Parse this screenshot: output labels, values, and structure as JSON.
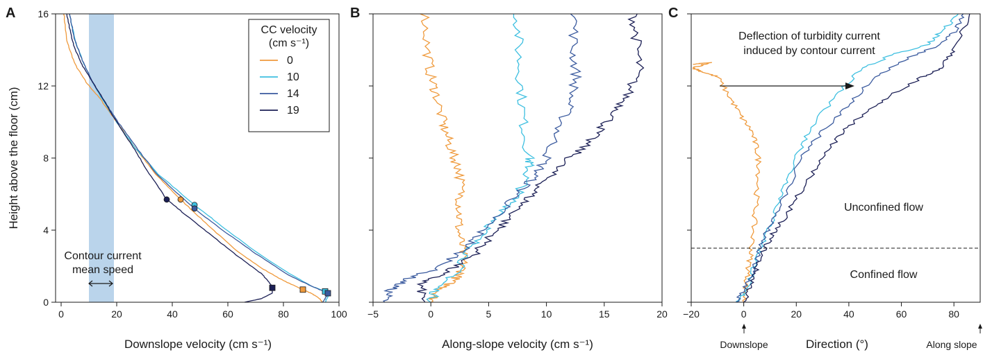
{
  "figure": {
    "colors": {
      "0": "#ef9a3c",
      "10": "#3dbfe0",
      "14": "#3a5a9e",
      "19": "#1b1f55",
      "shade": "#a9c9e6",
      "axis": "#1a1a1a"
    }
  },
  "chart_data": [
    {
      "id": "A",
      "type": "line",
      "panel_label": "A",
      "xlabel": "Downslope velocity (cm s⁻¹)",
      "ylabel": "Height above the floor (cm)",
      "xlim": [
        -2,
        100
      ],
      "ylim": [
        0,
        16
      ],
      "xticks": [
        0,
        20,
        40,
        60,
        80,
        100
      ],
      "yticks": [
        0,
        4,
        8,
        12,
        16
      ],
      "shaded_band": [
        10,
        19
      ],
      "annotation": {
        "line1": "Contour current",
        "line2": "mean speed"
      },
      "legend": {
        "title_line1": "CC velocity",
        "title_line2": "(cm s⁻¹)",
        "position": "top-right",
        "entries": [
          "0",
          "10",
          "14",
          "19"
        ]
      },
      "series": [
        {
          "name": "0",
          "color_key": "0",
          "points": [
            [
              1,
              16
            ],
            [
              2,
              14.5
            ],
            [
              5,
              13.2
            ],
            [
              9,
              12.2
            ],
            [
              14,
              11.3
            ],
            [
              20,
              10
            ],
            [
              27,
              8.5
            ],
            [
              34,
              7.1
            ],
            [
              43,
              5.7
            ],
            [
              52,
              4.4
            ],
            [
              62,
              3
            ],
            [
              72,
              1.9
            ],
            [
              80,
              1.2
            ],
            [
              87,
              0.7
            ],
            [
              90,
              0.5
            ],
            [
              93,
              0.2
            ],
            [
              94,
              0
            ]
          ],
          "max_point": [
            43,
            5.7
          ],
          "bottom_point": [
            87,
            0.7
          ]
        },
        {
          "name": "10",
          "color_key": "10",
          "points": [
            [
              3,
              16
            ],
            [
              5,
              14.5
            ],
            [
              8,
              13.3
            ],
            [
              11,
              12.3
            ],
            [
              15,
              11.2
            ],
            [
              20,
              10
            ],
            [
              27,
              8.5
            ],
            [
              35,
              7.1
            ],
            [
              48,
              5.4
            ],
            [
              58,
              4.2
            ],
            [
              70,
              2.8
            ],
            [
              82,
              1.6
            ],
            [
              90,
              0.9
            ],
            [
              95,
              0.6
            ],
            [
              96,
              0.3
            ],
            [
              95,
              0
            ]
          ],
          "max_point": [
            48,
            5.4
          ],
          "bottom_point": [
            95,
            0.6
          ]
        },
        {
          "name": "14",
          "color_key": "14",
          "points": [
            [
              3,
              16
            ],
            [
              5,
              14.5
            ],
            [
              8,
              13.3
            ],
            [
              11,
              12.3
            ],
            [
              15,
              11.3
            ],
            [
              20,
              10.1
            ],
            [
              27,
              8.6
            ],
            [
              35,
              7.0
            ],
            [
              48,
              5.2
            ],
            [
              58,
              4.0
            ],
            [
              70,
              2.7
            ],
            [
              82,
              1.5
            ],
            [
              90,
              0.9
            ],
            [
              96,
              0.5
            ],
            [
              95,
              0.2
            ],
            [
              94,
              0
            ]
          ],
          "max_point": [
            48,
            5.2
          ],
          "bottom_point": [
            96,
            0.5
          ]
        },
        {
          "name": "19",
          "color_key": "19",
          "points": [
            [
              2,
              16
            ],
            [
              4,
              14.5
            ],
            [
              7,
              13.3
            ],
            [
              11,
              12.3
            ],
            [
              15,
              11.3
            ],
            [
              20,
              10
            ],
            [
              26,
              8.6
            ],
            [
              31,
              7.3
            ],
            [
              38,
              5.7
            ],
            [
              46,
              4.7
            ],
            [
              55,
              3.6
            ],
            [
              64,
              2.5
            ],
            [
              72,
              1.6
            ],
            [
              76,
              0.9
            ],
            [
              76,
              0.5
            ],
            [
              72,
              0.2
            ],
            [
              66,
              0
            ]
          ],
          "max_point": [
            38,
            5.7
          ],
          "bottom_point": [
            76,
            0.8
          ]
        }
      ]
    },
    {
      "id": "B",
      "type": "line",
      "panel_label": "B",
      "xlabel": "Along-slope velocity (cm s⁻¹)",
      "xlim": [
        -5,
        20
      ],
      "ylim": [
        0,
        16
      ],
      "xticks": [
        -5,
        0,
        5,
        10,
        15,
        20
      ],
      "yticks": [
        0,
        4,
        8,
        12,
        16
      ],
      "series": [
        {
          "name": "0",
          "color_key": "0",
          "points": [
            [
              -0.5,
              16
            ],
            [
              -0.3,
              14
            ],
            [
              0,
              12.5
            ],
            [
              0.5,
              11.5
            ],
            [
              1,
              10
            ],
            [
              1.5,
              9
            ],
            [
              2,
              8
            ],
            [
              2.5,
              7.3
            ],
            [
              2.6,
              6
            ],
            [
              2.5,
              5
            ],
            [
              2.4,
              4
            ],
            [
              2.7,
              3
            ],
            [
              2.8,
              2
            ],
            [
              2.5,
              1.5
            ],
            [
              1.5,
              1
            ],
            [
              0.5,
              0.5
            ],
            [
              0,
              0
            ]
          ]
        },
        {
          "name": "10",
          "color_key": "10",
          "points": [
            [
              7.5,
              16
            ],
            [
              7.6,
              14
            ],
            [
              7.8,
              12
            ],
            [
              8,
              10
            ],
            [
              8.5,
              8
            ],
            [
              8.5,
              7.5
            ],
            [
              8,
              6.5
            ],
            [
              7,
              5.5
            ],
            [
              5.5,
              4.5
            ],
            [
              4,
              3.5
            ],
            [
              3,
              2.5
            ],
            [
              2,
              1.5
            ],
            [
              0.5,
              0.8
            ],
            [
              0,
              0
            ]
          ]
        },
        {
          "name": "14",
          "color_key": "14",
          "points": [
            [
              12.5,
              16
            ],
            [
              12.3,
              14
            ],
            [
              12.6,
              12.5
            ],
            [
              12,
              11
            ],
            [
              11,
              9.5
            ],
            [
              10,
              8
            ],
            [
              9,
              7
            ],
            [
              7.5,
              6
            ],
            [
              6,
              5
            ],
            [
              4.5,
              4
            ],
            [
              3,
              3
            ],
            [
              1,
              2
            ],
            [
              -2,
              1.3
            ],
            [
              -3.5,
              0.7
            ],
            [
              -4,
              0
            ]
          ]
        },
        {
          "name": "19",
          "color_key": "19",
          "points": [
            [
              17.5,
              16
            ],
            [
              17.8,
              14.5
            ],
            [
              18,
              13
            ],
            [
              17,
              11.5
            ],
            [
              16,
              10.5
            ],
            [
              14.5,
              9.5
            ],
            [
              13,
              8.5
            ],
            [
              11,
              7.5
            ],
            [
              9.5,
              6.5
            ],
            [
              8,
              5.5
            ],
            [
              6.5,
              4.5
            ],
            [
              5,
              3.5
            ],
            [
              3.5,
              2.5
            ],
            [
              1,
              1.6
            ],
            [
              -1,
              1
            ],
            [
              -0.5,
              0
            ]
          ]
        }
      ]
    },
    {
      "id": "C",
      "type": "line",
      "panel_label": "C",
      "xlabel": "Direction (°)",
      "xlim": [
        -20,
        90
      ],
      "ylim": [
        0,
        16
      ],
      "xticks": [
        -20,
        0,
        20,
        40,
        60,
        80
      ],
      "yticks": [
        0,
        4,
        8,
        12,
        16
      ],
      "bottom_markers": {
        "downslope": "Downslope",
        "along_slope": "Along slope"
      },
      "annotations": {
        "deflection_line1": "Deflection of turbidity current",
        "deflection_line2": "induced by contour current",
        "unconfined": "Unconfined flow",
        "confined": "Confined flow"
      },
      "dashed_line_y": 3,
      "series": [
        {
          "name": "0",
          "color_key": "0",
          "points": [
            [
              -20,
              13.2
            ],
            [
              -13,
              13.3
            ],
            [
              -19,
              13
            ],
            [
              -16,
              12.8
            ],
            [
              -10,
              12.5
            ],
            [
              -5,
              11.3
            ],
            [
              -1,
              10.3
            ],
            [
              3,
              9.5
            ],
            [
              5,
              8.5
            ],
            [
              6,
              7.5
            ],
            [
              5,
              6
            ],
            [
              4,
              4.5
            ],
            [
              3,
              3
            ],
            [
              2,
              2
            ],
            [
              1,
              1
            ],
            [
              0,
              0
            ]
          ]
        },
        {
          "name": "10",
          "color_key": "10",
          "points": [
            [
              82,
              16
            ],
            [
              75,
              15
            ],
            [
              70,
              14.3
            ],
            [
              58,
              13.8
            ],
            [
              45,
              13
            ],
            [
              35,
              11.5
            ],
            [
              25,
              9.5
            ],
            [
              20,
              8
            ],
            [
              16,
              6.5
            ],
            [
              12,
              5
            ],
            [
              8,
              3.5
            ],
            [
              5,
              2.5
            ],
            [
              3,
              1.5
            ],
            [
              0,
              0.5
            ],
            [
              -2,
              0
            ]
          ]
        },
        {
          "name": "14",
          "color_key": "14",
          "points": [
            [
              84,
              16
            ],
            [
              80,
              15
            ],
            [
              75,
              14.3
            ],
            [
              62,
              13.5
            ],
            [
              50,
              12.5
            ],
            [
              40,
              11
            ],
            [
              30,
              9.5
            ],
            [
              22,
              8
            ],
            [
              16,
              6
            ],
            [
              11,
              4.5
            ],
            [
              7,
              3.5
            ],
            [
              5,
              2.5
            ],
            [
              3,
              1.5
            ],
            [
              0,
              0.7
            ],
            [
              -3,
              0
            ]
          ]
        },
        {
          "name": "19",
          "color_key": "19",
          "points": [
            [
              86,
              16
            ],
            [
              80,
              14
            ],
            [
              75,
              13
            ],
            [
              68,
              12.5
            ],
            [
              56,
              11.5
            ],
            [
              46,
              10.5
            ],
            [
              38,
              9.5
            ],
            [
              30,
              8
            ],
            [
              23,
              6.5
            ],
            [
              17,
              5
            ],
            [
              12,
              4
            ],
            [
              8,
              3
            ],
            [
              5,
              2
            ],
            [
              3,
              1
            ],
            [
              0,
              0
            ]
          ]
        }
      ]
    }
  ]
}
